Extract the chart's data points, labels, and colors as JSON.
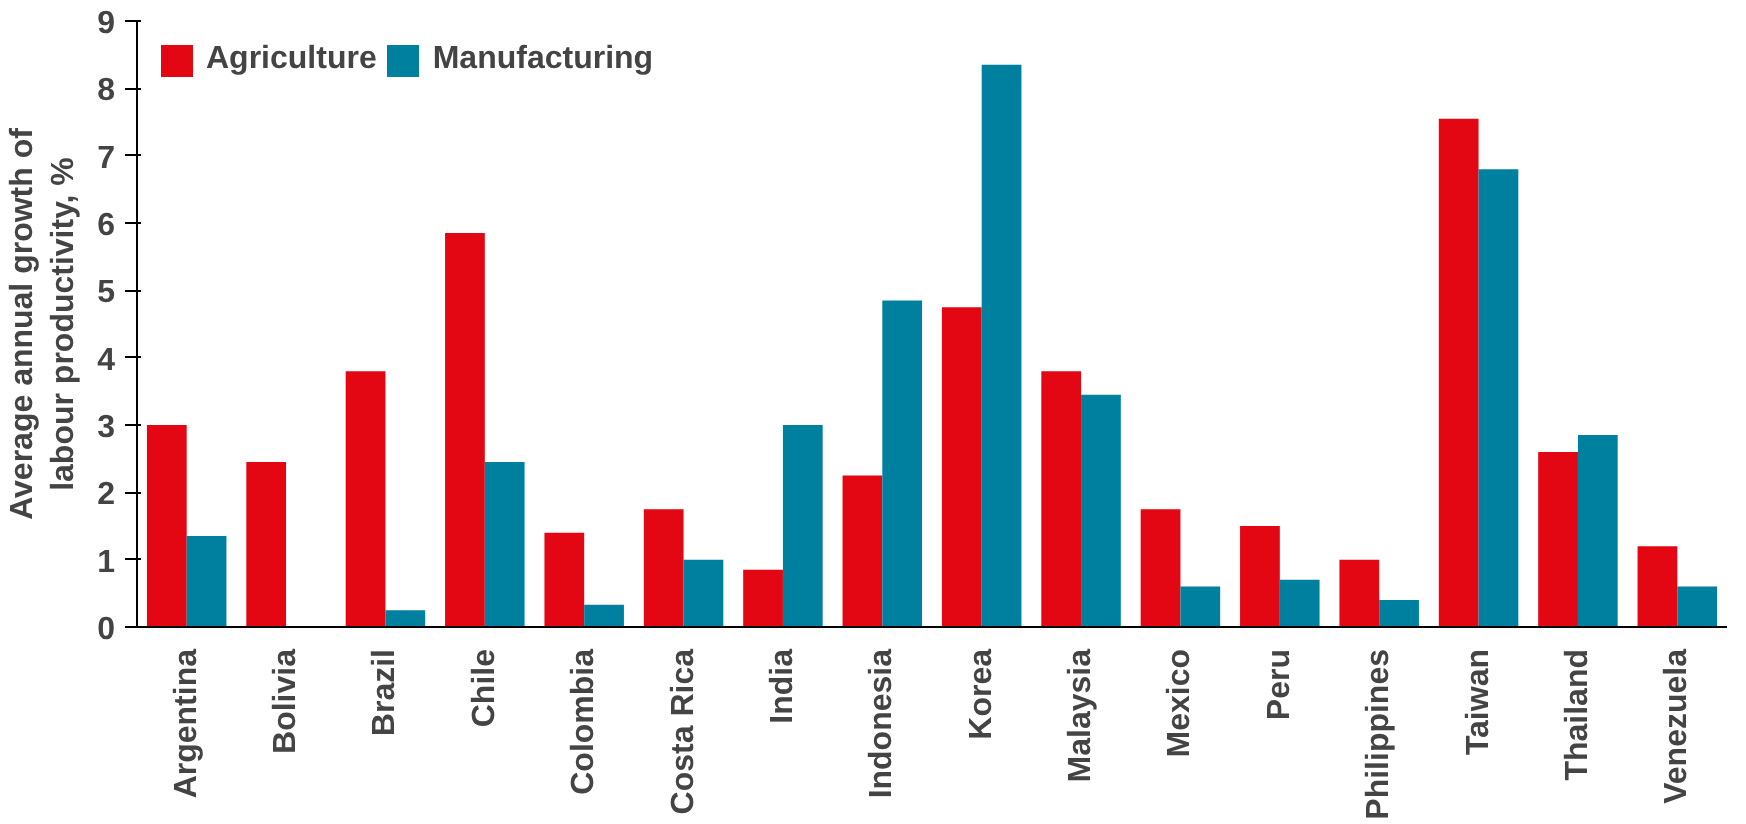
{
  "chart_data": {
    "type": "bar",
    "ylabel": "Average annual growth of labour productivity, %",
    "categories": [
      "Argentina",
      "Bolivia",
      "Brazil",
      "Chile",
      "Colombia",
      "Costa Rica",
      "India",
      "Indonesia",
      "Korea",
      "Malaysia",
      "Mexico",
      "Peru",
      "Philippines",
      "Taiwan",
      "Thailand",
      "Venezuela"
    ],
    "series": [
      {
        "name": "Agriculture",
        "color": "#e30613",
        "values": [
          3.0,
          2.45,
          3.8,
          5.85,
          1.4,
          1.75,
          0.85,
          2.25,
          4.75,
          3.8,
          1.75,
          1.5,
          1.0,
          7.55,
          2.6,
          1.2
        ]
      },
      {
        "name": "Manufacturing",
        "color": "#00809f",
        "values": [
          1.35,
          0,
          0.25,
          2.45,
          0.33,
          1.0,
          3.0,
          4.85,
          8.35,
          3.45,
          0.6,
          0.7,
          0.4,
          6.8,
          2.85,
          0.6
        ]
      }
    ],
    "ylim": [
      0,
      9
    ],
    "yticks": [
      0,
      1,
      2,
      3,
      4,
      5,
      6,
      7,
      8,
      9
    ],
    "grid": false,
    "legend": "top left"
  }
}
